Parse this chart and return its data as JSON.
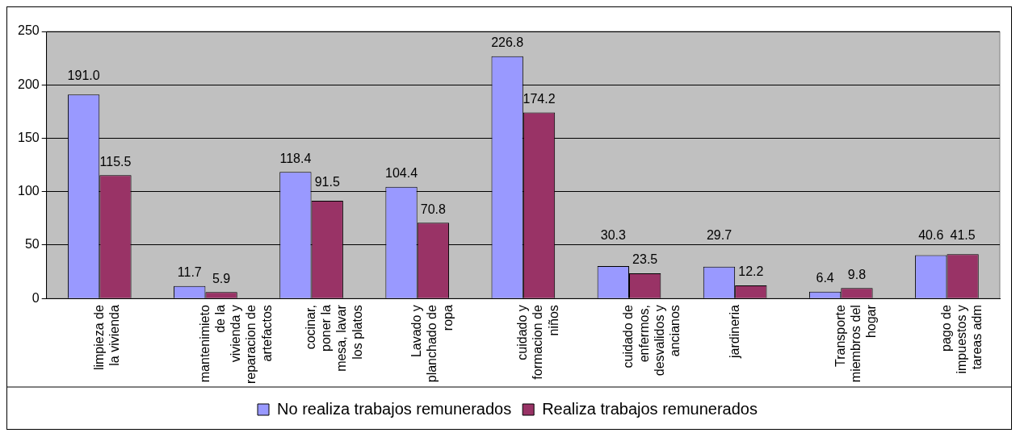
{
  "chart_data": {
    "type": "bar",
    "categories": [
      "limpieza de la vivienda",
      "mantenimieto de la vivienda y reparacion de artefactos",
      "cocinar, poner la mesa, lavar los platos",
      "Lavado y planchado de ropa",
      "cuidado y formacion de niños",
      "cuidado de enfermos, desvalidos y ancianos",
      "jardineria",
      "Transporte miembros del hogar",
      "pago de impuestos y tareas adm"
    ],
    "series": [
      {
        "name": "No realiza trabajos remunerados",
        "color": "#9999ff",
        "values": [
          191.0,
          11.7,
          118.4,
          104.4,
          226.8,
          30.3,
          29.7,
          6.4,
          40.6
        ],
        "value_labels": [
          "191.0",
          "11.7",
          "118.4",
          "104.4",
          "226.8",
          "30.3",
          "29.7",
          "6.4",
          "40.6"
        ]
      },
      {
        "name": "Realiza trabajos remunerados",
        "color": "#993366",
        "values": [
          115.5,
          5.9,
          91.5,
          70.8,
          174.2,
          23.5,
          12.2,
          9.8,
          41.5
        ],
        "value_labels": [
          "115.5",
          "5.9",
          "91.5",
          "70.8",
          "174.2",
          "23.5",
          "12.2",
          "9.8",
          "41.5"
        ]
      }
    ],
    "ylim": [
      0,
      250
    ],
    "yticks": [
      0,
      50,
      100,
      150,
      200,
      250
    ],
    "grid": "y",
    "legend": "bottom"
  }
}
